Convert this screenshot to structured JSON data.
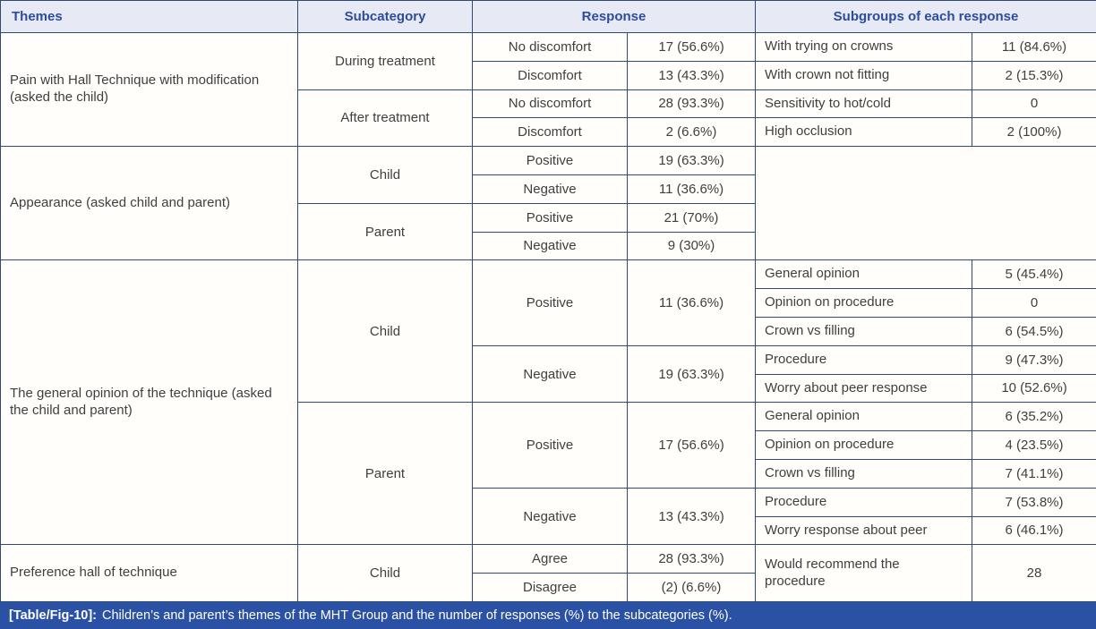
{
  "header": {
    "themes": "Themes",
    "subcategory": "Subcategory",
    "response": "Response",
    "subgroups": "Subgroups of each response"
  },
  "caption": {
    "label": "[Table/Fig-10]:",
    "text": "Children’s and parent’s themes of the MHT Group and the number of responses (%) to the subcategories (%)."
  },
  "colors": {
    "grid_line": "#2d4a73",
    "header_bg": "#e7eaf4",
    "header_text": "#2b4d9b",
    "caption_bg": "#2b51a5",
    "caption_text": "#ffffff",
    "body_text": "#3f3f3f"
  },
  "themes": [
    {
      "label": "Pain with Hall Technique with modification (asked the child)",
      "subcategories": [
        {
          "label": "During treatment",
          "responses": [
            {
              "label": "No discomfort",
              "value": "17 (56.6%)",
              "subgroups": [
                {
                  "label": "With trying on crowns",
                  "value": "11 (84.6%)"
                }
              ]
            },
            {
              "label": "Discomfort",
              "value": "13 (43.3%)",
              "subgroups": [
                {
                  "label": "With crown not fitting",
                  "value": "2 (15.3%)"
                }
              ]
            }
          ]
        },
        {
          "label": "After treatment",
          "responses": [
            {
              "label": "No discomfort",
              "value": "28 (93.3%)",
              "subgroups": [
                {
                  "label": "Sensitivity to hot/cold",
                  "value": "0"
                }
              ]
            },
            {
              "label": "Discomfort",
              "value": "2 (6.6%)",
              "subgroups": [
                {
                  "label": "High occlusion",
                  "value": "2 (100%)"
                }
              ]
            }
          ]
        }
      ]
    },
    {
      "label": "Appearance (asked child and parent)",
      "subcategories": [
        {
          "label": "Child",
          "responses": [
            {
              "label": "Positive",
              "value": "19 (63.3%)",
              "subgroups": []
            },
            {
              "label": "Negative",
              "value": "11 (36.6%)",
              "subgroups": []
            }
          ]
        },
        {
          "label": "Parent",
          "responses": [
            {
              "label": "Positive",
              "value": "21 (70%)",
              "subgroups": []
            },
            {
              "label": "Negative",
              "value": "9 (30%)",
              "subgroups": []
            }
          ]
        }
      ]
    },
    {
      "label": "The general opinion of the technique (asked the child and parent)",
      "subcategories": [
        {
          "label": "Child",
          "responses": [
            {
              "label": "Positive",
              "value": "11 (36.6%)",
              "subgroups": [
                {
                  "label": "General opinion",
                  "value": "5 (45.4%)"
                },
                {
                  "label": "Opinion on procedure",
                  "value": "0"
                },
                {
                  "label": "Crown vs filling",
                  "value": "6 (54.5%)"
                }
              ]
            },
            {
              "label": "Negative",
              "value": "19 (63.3%)",
              "subgroups": [
                {
                  "label": "Procedure",
                  "value": "9 (47.3%)"
                },
                {
                  "label": "Worry about peer response",
                  "value": "10 (52.6%)"
                }
              ]
            }
          ]
        },
        {
          "label": "Parent",
          "responses": [
            {
              "label": "Positive",
              "value": "17 (56.6%)",
              "subgroups": [
                {
                  "label": "General opinion",
                  "value": "6 (35.2%)"
                },
                {
                  "label": "Opinion on procedure",
                  "value": "4 (23.5%)"
                },
                {
                  "label": "Crown vs filling",
                  "value": "7 (41.1%)"
                }
              ]
            },
            {
              "label": "Negative",
              "value": "13 (43.3%)",
              "subgroups": [
                {
                  "label": "Procedure",
                  "value": "7 (53.8%)"
                },
                {
                  "label": "Worry response about peer",
                  "value": "6 (46.1%)"
                }
              ]
            }
          ]
        }
      ]
    },
    {
      "label": "Preference hall of technique",
      "subcategories": [
        {
          "label": "Child",
          "merged_subgroup": {
            "label": "Would recommend the procedure",
            "value": "28"
          },
          "responses": [
            {
              "label": "Agree",
              "value": "28 (93.3%)"
            },
            {
              "label": "Disagree",
              "value": "(2) (6.6%)"
            }
          ]
        }
      ]
    }
  ]
}
